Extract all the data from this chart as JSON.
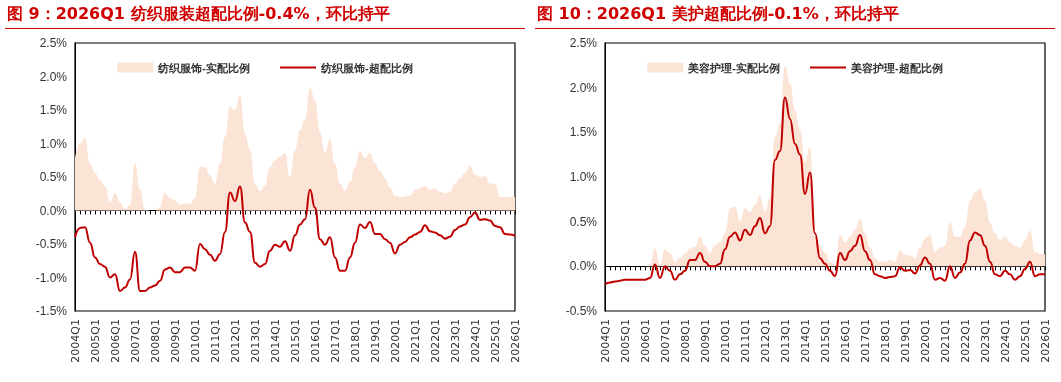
{
  "chart_data": [
    {
      "type": "line",
      "title": "图 9：2026Q1 纺织服装超配比例-0.4%，环比持平",
      "categories": [
        "2004Q1",
        null,
        null,
        null,
        "2005Q1",
        null,
        null,
        null,
        "2006Q1",
        null,
        null,
        null,
        "2007Q1",
        null,
        null,
        null,
        "2008Q1",
        null,
        null,
        null,
        "2009Q1",
        null,
        null,
        null,
        "2010Q1",
        null,
        null,
        null,
        "2011Q1",
        null,
        null,
        null,
        "2012Q1",
        null,
        null,
        null,
        "2013Q1",
        null,
        null,
        null,
        "2014Q1",
        null,
        null,
        null,
        "2015Q1",
        null,
        null,
        null,
        "2016Q1",
        null,
        null,
        null,
        "2017Q1",
        null,
        null,
        null,
        "2018Q1",
        null,
        null,
        null,
        "2019Q1",
        null,
        null,
        null,
        "2020Q1",
        null,
        null,
        null,
        "2021Q1",
        null,
        null,
        null,
        "2022Q1",
        null,
        null,
        null,
        "2023Q1",
        null,
        null,
        null,
        "2024Q1",
        null,
        null,
        null,
        "2025Q1",
        null,
        null,
        null,
        "2026Q1"
      ],
      "series": [
        {
          "name": "纺织服饰-实配比例",
          "type": "area",
          "color": "#fbe3d6",
          "values": [
            0.78,
            1.0,
            1.08,
            0.7,
            0.56,
            0.45,
            0.37,
            0.12,
            0.26,
            0.12,
            0.02,
            0.08,
            0.7,
            0.31,
            0.01,
            0,
            0,
            0.05,
            0.26,
            0.18,
            0.15,
            0.09,
            0.1,
            0.1,
            0.18,
            0.65,
            0.65,
            0.53,
            0.4,
            0.7,
            1.1,
            1.55,
            1.5,
            1.72,
            1.14,
            0.9,
            0.4,
            0.29,
            0.37,
            0.65,
            0.75,
            0.8,
            0.86,
            0.5,
            0.9,
            1.2,
            1.36,
            1.83,
            1.64,
            1.17,
            0.86,
            1.06,
            0.7,
            0.4,
            0.29,
            0.42,
            0.65,
            0.89,
            0.78,
            0.86,
            0.7,
            0.59,
            0.48,
            0.34,
            0.22,
            0.2,
            0.21,
            0.22,
            0.31,
            0.33,
            0.37,
            0.31,
            0.33,
            0.28,
            0.26,
            0.28,
            0.4,
            0.48,
            0.56,
            0.67,
            0.53,
            0.5,
            0.52,
            0.4,
            0.4,
            0.2,
            0.2,
            0.2,
            0.2
          ]
        },
        {
          "name": "纺织服饰-超配比例",
          "type": "line",
          "color": "#c00000",
          "values": [
            -0.4,
            -0.26,
            -0.25,
            -0.48,
            -0.7,
            -0.8,
            -0.84,
            -1.0,
            -0.95,
            -1.2,
            -1.15,
            -1.03,
            -0.62,
            -1.2,
            -1.2,
            -1.15,
            -1.12,
            -1.05,
            -0.88,
            -0.85,
            -0.92,
            -0.92,
            -0.85,
            -0.85,
            -0.9,
            -0.5,
            -0.58,
            -0.66,
            -0.75,
            -0.65,
            -0.32,
            0.27,
            0.14,
            0.36,
            -0.18,
            -0.32,
            -0.78,
            -0.84,
            -0.8,
            -0.6,
            -0.51,
            -0.54,
            -0.46,
            -0.6,
            -0.37,
            -0.21,
            -0.13,
            0.31,
            0.04,
            -0.43,
            -0.51,
            -0.4,
            -0.7,
            -0.9,
            -0.9,
            -0.7,
            -0.48,
            -0.21,
            -0.26,
            -0.17,
            -0.35,
            -0.35,
            -0.43,
            -0.48,
            -0.64,
            -0.51,
            -0.47,
            -0.4,
            -0.36,
            -0.32,
            -0.22,
            -0.31,
            -0.33,
            -0.37,
            -0.42,
            -0.39,
            -0.29,
            -0.24,
            -0.21,
            -0.1,
            -0.03,
            -0.14,
            -0.13,
            -0.15,
            -0.23,
            -0.25,
            -0.35,
            -0.36,
            -0.38
          ]
        }
      ],
      "ylim": [
        -1.5,
        2.5
      ],
      "yticks": [
        {
          "value": -1.5,
          "label": "-1.5%"
        },
        {
          "value": -1,
          "label": "-1.0%"
        },
        {
          "value": -0.5,
          "label": "-0.5%"
        },
        {
          "value": 0,
          "label": "0.0%"
        },
        {
          "value": 0.5,
          "label": "0.5%"
        },
        {
          "value": 1,
          "label": "1.0%"
        },
        {
          "value": 1.5,
          "label": "1.5%"
        },
        {
          "value": 2,
          "label": "2.0%"
        },
        {
          "value": 2.5,
          "label": "2.5%"
        }
      ],
      "legend": "top"
    },
    {
      "type": "line",
      "title": "图 10：2026Q1 美护超配比例-0.1%，环比持平",
      "categories": [
        "2004Q1",
        null,
        null,
        null,
        "2005Q1",
        null,
        null,
        null,
        "2006Q1",
        null,
        null,
        null,
        "2007Q1",
        null,
        null,
        null,
        "2008Q1",
        null,
        null,
        null,
        "2009Q1",
        null,
        null,
        null,
        "2010Q1",
        null,
        null,
        null,
        "2011Q1",
        null,
        null,
        null,
        "2012Q1",
        null,
        null,
        null,
        "2013Q1",
        null,
        null,
        null,
        "2014Q1",
        null,
        null,
        null,
        "2015Q1",
        null,
        null,
        null,
        "2016Q1",
        null,
        null,
        null,
        "2017Q1",
        null,
        null,
        null,
        "2018Q1",
        null,
        null,
        null,
        "2019Q1",
        null,
        null,
        null,
        "2020Q1",
        null,
        null,
        null,
        "2021Q1",
        null,
        null,
        null,
        "2022Q1",
        null,
        null,
        null,
        "2023Q1",
        null,
        null,
        null,
        "2024Q1",
        null,
        null,
        null,
        "2025Q1",
        null,
        null,
        null,
        "2026Q1"
      ],
      "series": [
        {
          "name": "美容护理-实配比例",
          "type": "area",
          "color": "#fbe3d6",
          "values": [
            0,
            0,
            0,
            0,
            0,
            0,
            0,
            0,
            0,
            0.02,
            0.2,
            0.02,
            0.19,
            0.15,
            0.05,
            0.1,
            0.14,
            0.2,
            0.22,
            0.33,
            0.23,
            0.15,
            0.24,
            0.27,
            0.37,
            0.65,
            0.67,
            0.51,
            0.65,
            0.61,
            0.69,
            0.79,
            0.61,
            0.77,
            1.45,
            1.6,
            2.25,
            2.05,
            1.75,
            1.53,
            1.17,
            1.33,
            0.33,
            0.23,
            0.15,
            0.05,
            0.01,
            0.35,
            0.27,
            0.33,
            0.41,
            0.53,
            0.37,
            0.21,
            0.09,
            0.05,
            0.05,
            0.07,
            0.05,
            0.18,
            0.13,
            0.12,
            0.09,
            0.21,
            0.31,
            0.35,
            0.16,
            0.21,
            0.23,
            0.49,
            0.33,
            0.33,
            0.45,
            0.73,
            0.83,
            0.87,
            0.73,
            0.49,
            0.37,
            0.29,
            0.33,
            0.27,
            0.23,
            0.21,
            0.29,
            0.4,
            0.16,
            0.14,
            0.13
          ]
        },
        {
          "name": "美容护理-超配比例",
          "type": "line",
          "color": "#c00000",
          "values": [
            -0.2,
            -0.18,
            -0.17,
            -0.16,
            -0.15,
            -0.15,
            -0.15,
            -0.15,
            -0.15,
            -0.13,
            0.02,
            -0.13,
            0.0,
            -0.05,
            -0.15,
            -0.09,
            -0.05,
            0.07,
            0.07,
            0.15,
            0.05,
            0,
            0,
            0.03,
            0.19,
            0.33,
            0.38,
            0.29,
            0.41,
            0.35,
            0.45,
            0.54,
            0.37,
            0.45,
            1.19,
            1.29,
            1.89,
            1.65,
            1.37,
            1.25,
            0.81,
            1.05,
            0.37,
            0.09,
            0.03,
            -0.05,
            -0.11,
            0.15,
            0.07,
            0.17,
            0.23,
            0.35,
            0.17,
            0.07,
            -0.09,
            -0.11,
            -0.13,
            -0.12,
            -0.11,
            -0.01,
            -0.05,
            -0.04,
            -0.08,
            0.01,
            0.1,
            0.03,
            -0.15,
            -0.13,
            -0.16,
            0,
            -0.13,
            -0.07,
            0.03,
            0.29,
            0.38,
            0.35,
            0.23,
            0.05,
            -0.09,
            -0.11,
            -0.05,
            -0.09,
            -0.15,
            -0.11,
            -0.03,
            0.05,
            -0.11,
            -0.09,
            -0.09
          ]
        }
      ],
      "ylim": [
        -0.5,
        2.5
      ],
      "yticks": [
        {
          "value": -0.5,
          "label": "-0.5%"
        },
        {
          "value": 0,
          "label": "0.0%"
        },
        {
          "value": 0.5,
          "label": "0.5%"
        },
        {
          "value": 1,
          "label": "1.0%"
        },
        {
          "value": 1.5,
          "label": "1.5%"
        },
        {
          "value": 2,
          "label": "2.0%"
        },
        {
          "value": 2.5,
          "label": "2.5%"
        }
      ],
      "legend": "top"
    }
  ]
}
